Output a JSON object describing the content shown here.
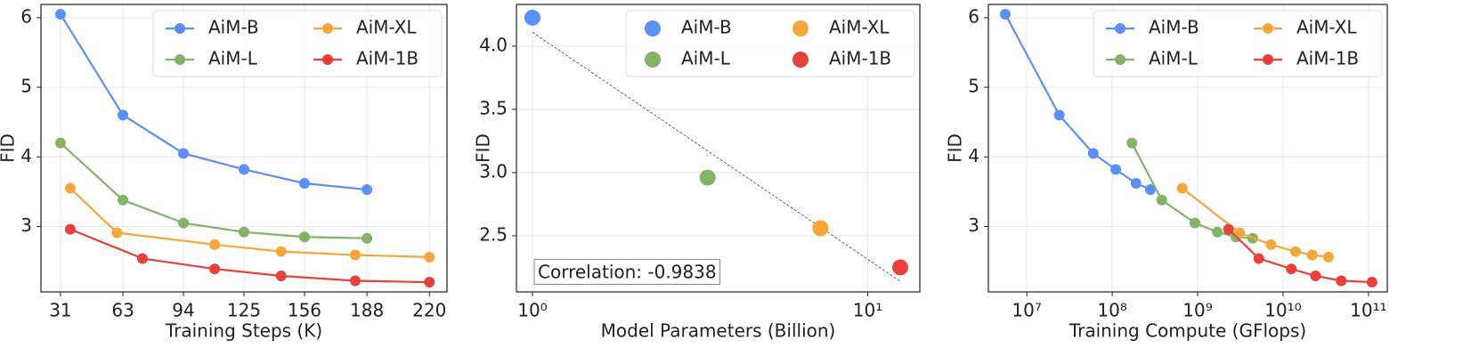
{
  "chart_data": [
    {
      "type": "line",
      "xlabel": "Training Steps (K)",
      "ylabel": "FID",
      "xlim": [
        21,
        229
      ],
      "ylim": [
        2.06,
        6.19
      ],
      "xticks": [
        31,
        63,
        94,
        125,
        156,
        188,
        220
      ],
      "yticks": [
        3,
        4,
        5,
        6
      ],
      "grid": true,
      "legend": "upper right",
      "series": [
        {
          "name": "AiM-B",
          "color": "#5b8ff9",
          "x": [
            31,
            63,
            94,
            125,
            156,
            188
          ],
          "values": [
            6.05,
            4.6,
            4.05,
            3.82,
            3.62,
            3.53
          ]
        },
        {
          "name": "AiM-L",
          "color": "#82b366",
          "x": [
            31,
            63,
            94,
            125,
            156,
            188
          ],
          "values": [
            4.2,
            3.38,
            3.05,
            2.92,
            2.85,
            2.83
          ]
        },
        {
          "name": "AiM-XL",
          "color": "#f6a73b",
          "x": [
            36,
            60,
            110,
            144,
            182,
            220
          ],
          "values": [
            3.55,
            2.91,
            2.74,
            2.64,
            2.59,
            2.56
          ]
        },
        {
          "name": "AiM-1B",
          "color": "#e8403a",
          "x": [
            36,
            73,
            110,
            144,
            182,
            220
          ],
          "values": [
            2.96,
            2.54,
            2.39,
            2.29,
            2.22,
            2.2
          ]
        }
      ]
    },
    {
      "type": "scatter",
      "xlabel": "Model Parameters (Billion)",
      "ylabel": "FID",
      "xscale": "log",
      "xlim": [
        0.896,
        14.3
      ],
      "ylim": [
        2.056,
        4.33
      ],
      "xticks": [
        {
          "value": 1,
          "label": "10⁰"
        },
        {
          "value": 10,
          "label": "10¹"
        }
      ],
      "yticks": [
        2.5,
        {
          "value": 3,
          "label": "3.0"
        },
        3.5,
        {
          "value": 4,
          "label": "4.0"
        }
      ],
      "grid": true,
      "legend": "upper right",
      "annotation": "Correlation: -0.9838",
      "trend_line": {
        "x": [
          1.0,
          12.5
        ],
        "y": [
          4.11,
          2.14
        ]
      },
      "series": [
        {
          "name": "AiM-B",
          "color": "#5b8ff9",
          "x": [
            1.0
          ],
          "values": [
            4.225
          ]
        },
        {
          "name": "AiM-L",
          "color": "#82b366",
          "x": [
            3.33
          ],
          "values": [
            2.96
          ]
        },
        {
          "name": "AiM-XL",
          "color": "#f6a73b",
          "x": [
            7.23
          ],
          "values": [
            2.56
          ]
        },
        {
          "name": "AiM-1B",
          "color": "#e8403a",
          "x": [
            12.5
          ],
          "values": [
            2.25
          ]
        }
      ]
    },
    {
      "type": "line",
      "xlabel": "Training Compute (GFlops)",
      "ylabel": "FID",
      "xscale": "log",
      "xlim": [
        3550000,
        166000000000
      ],
      "ylim": [
        2.06,
        6.19
      ],
      "xticks": [
        {
          "value": 10000000,
          "label": "10⁷"
        },
        {
          "value": 100000000,
          "label": "10⁸"
        },
        {
          "value": 1000000000,
          "label": "10⁹"
        },
        {
          "value": 10000000000,
          "label": "10¹⁰"
        },
        {
          "value": 100000000000,
          "label": "10¹¹"
        }
      ],
      "yticks": [
        3,
        4,
        5,
        6
      ],
      "grid": true,
      "legend": "upper right",
      "series": [
        {
          "name": "AiM-B",
          "color": "#5b8ff9",
          "x": [
            5600000,
            24000000,
            60000000,
            110000000,
            190000000,
            280000000
          ],
          "values": [
            6.05,
            4.6,
            4.05,
            3.82,
            3.62,
            3.53
          ]
        },
        {
          "name": "AiM-L",
          "color": "#82b366",
          "x": [
            170000000,
            380000000,
            930000000,
            1700000000,
            2800000000,
            4400000000
          ],
          "values": [
            4.2,
            3.38,
            3.05,
            2.92,
            2.85,
            2.83
          ]
        },
        {
          "name": "AiM-XL",
          "color": "#f6a73b",
          "x": [
            660000000,
            3100000000,
            7200000000,
            14000000000,
            22000000000,
            34000000000
          ],
          "values": [
            3.55,
            2.91,
            2.74,
            2.64,
            2.59,
            2.56
          ]
        },
        {
          "name": "AiM-1B",
          "color": "#e8403a",
          "x": [
            2300000000,
            5200000000,
            12500000000,
            24000000000,
            48000000000,
            110000000000
          ],
          "values": [
            2.96,
            2.54,
            2.39,
            2.29,
            2.22,
            2.2
          ]
        }
      ]
    }
  ]
}
